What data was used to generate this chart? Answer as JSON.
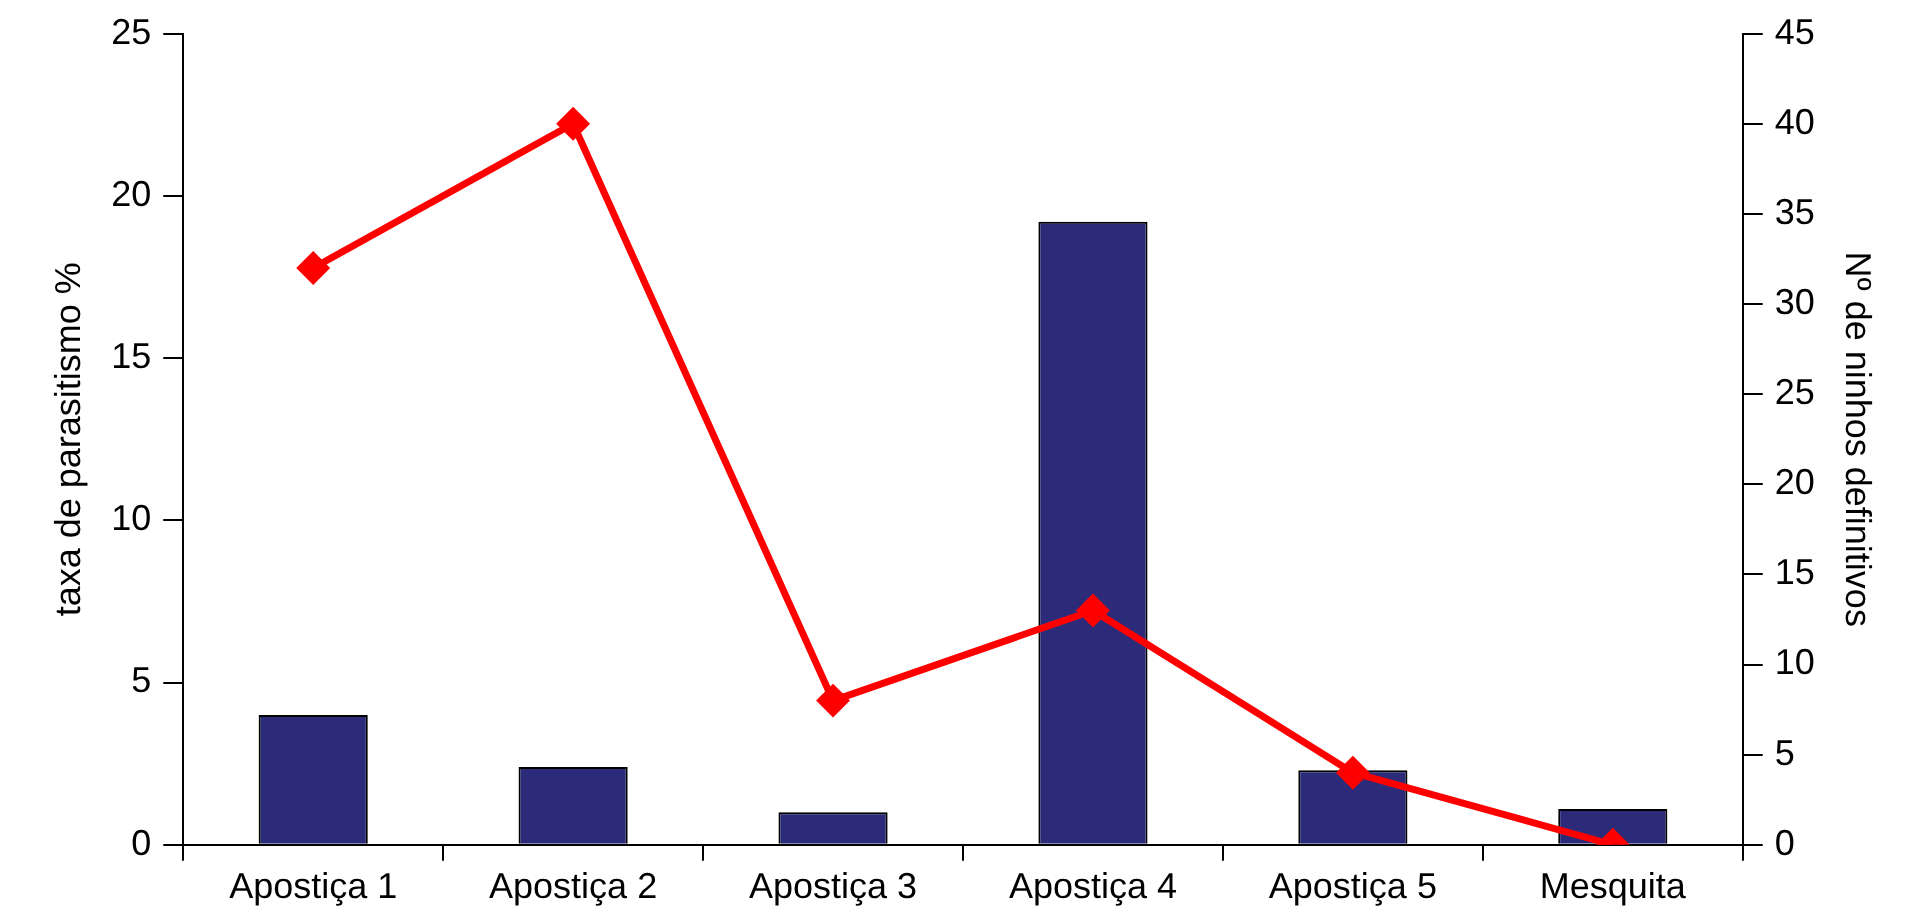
{
  "chart_data": {
    "type": "bar",
    "categories": [
      "Apostiça 1",
      "Apostiça 2",
      "Apostiça 3",
      "Apostiça 4",
      "Apostiça 5",
      "Mesquita"
    ],
    "ylabel": "taxa de parasitismo %",
    "y2label": "Nº de ninhos definitivos",
    "ylim": [
      0,
      25
    ],
    "yticks": [
      0,
      5,
      10,
      15,
      20,
      25
    ],
    "y2lim": [
      0,
      45
    ],
    "y2ticks": [
      0,
      5,
      10,
      15,
      20,
      25,
      30,
      35,
      40,
      45
    ],
    "grid": false,
    "legend": false,
    "series": [
      {
        "color": "#2b2b7a",
        "values": [
          4.0,
          2.4,
          1.0,
          19.2,
          2.3,
          1.1
        ]
      },
      {
        "type": "line",
        "axis": "y2",
        "color": "#ff0000",
        "marker": "diamond",
        "line_style": "solid",
        "values": [
          32,
          40,
          8,
          13,
          4,
          0
        ]
      }
    ]
  }
}
